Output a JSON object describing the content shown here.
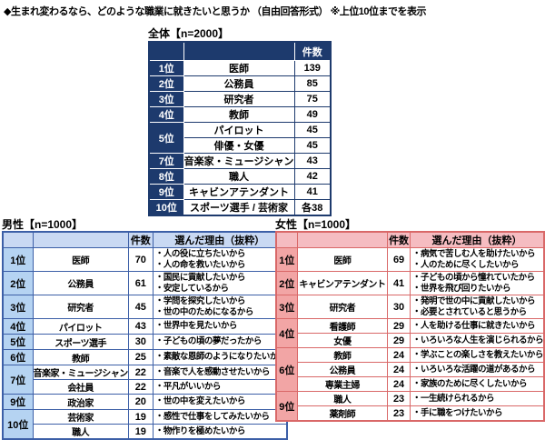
{
  "title": "◆生まれ変わるなら、どのような職業に就きたいと思うか （自由回答形式） ※上位10位までを表示",
  "colors": {
    "navy": "#1d3a6d",
    "male_border": "#3c5fa7",
    "male_header_bg": "#c9d9f3",
    "male_rank_bg": "#b5d3f2",
    "female_border": "#d96868",
    "female_header_bg": "#f5bcc1",
    "female_rank_bg": "#f2a5a5"
  },
  "chart_data": [
    {
      "type": "table",
      "label": "全体【n=2000】",
      "columns": {
        "count": "件数"
      },
      "rows": [
        {
          "rank": "1位",
          "rspan": 1,
          "job": "医師",
          "count": "139"
        },
        {
          "rank": "2位",
          "rspan": 1,
          "job": "公務員",
          "count": "85"
        },
        {
          "rank": "3位",
          "rspan": 1,
          "job": "研究者",
          "count": "75"
        },
        {
          "rank": "4位",
          "rspan": 1,
          "job": "教師",
          "count": "49"
        },
        {
          "rank": "5位",
          "rspan": 2,
          "job": "パイロット",
          "count": "45"
        },
        {
          "rank": null,
          "job": "俳優・女優",
          "count": "45"
        },
        {
          "rank": "7位",
          "rspan": 1,
          "job": "音楽家・ミュージシャン",
          "count": "43"
        },
        {
          "rank": "8位",
          "rspan": 1,
          "job": "職人",
          "count": "42"
        },
        {
          "rank": "9位",
          "rspan": 1,
          "job": "キャビンアテンダント",
          "count": "41"
        },
        {
          "rank": "10位",
          "rspan": 1,
          "job": "スポーツ選手 / 芸術家",
          "count": "各38"
        }
      ]
    },
    {
      "type": "table",
      "label": "男性【n=1000】",
      "columns": {
        "count": "件数",
        "reason": "選んだ理由（抜粋）"
      },
      "rows": [
        {
          "rank": "1位",
          "rspan": 1,
          "tall": true,
          "job": "医師",
          "count": "70",
          "reason": [
            "・人の役に立ちたいから",
            "・人の命を救いたいから"
          ]
        },
        {
          "rank": "2位",
          "rspan": 1,
          "tall": true,
          "job": "公務員",
          "count": "61",
          "reason": [
            "・国民に貢献したいから",
            "・安定しているから"
          ]
        },
        {
          "rank": "3位",
          "rspan": 1,
          "tall": true,
          "job": "研究者",
          "count": "45",
          "reason": [
            "・学問を探究したいから",
            "・世の中のためになるから"
          ]
        },
        {
          "rank": "4位",
          "rspan": 1,
          "job": "パイロット",
          "count": "43",
          "reason": [
            "・世界中を見たいから"
          ]
        },
        {
          "rank": "5位",
          "rspan": 1,
          "job": "スポーツ選手",
          "count": "30",
          "reason": [
            "・子どもの頃の夢だったから"
          ]
        },
        {
          "rank": "6位",
          "rspan": 1,
          "job": "教師",
          "count": "25",
          "reason": [
            "・素敵な恩師のようになりたいから"
          ]
        },
        {
          "rank": "7位",
          "rspan": 2,
          "job": "音楽家・ミュージシャン",
          "count": "22",
          "reason": [
            "・音楽で人を感動させたいから"
          ]
        },
        {
          "rank": null,
          "job": "会社員",
          "count": "22",
          "reason": [
            "・平凡がいいから"
          ]
        },
        {
          "rank": "9位",
          "rspan": 1,
          "job": "政治家",
          "count": "20",
          "reason": [
            "・世の中を変えたいから"
          ]
        },
        {
          "rank": "10位",
          "rspan": 2,
          "job": "芸術家",
          "count": "19",
          "reason": [
            "・感性で仕事をしてみたいから"
          ]
        },
        {
          "rank": null,
          "job": "職人",
          "count": "19",
          "reason": [
            "・物作りを極めたいから"
          ]
        }
      ]
    },
    {
      "type": "table",
      "label": "女性【n=1000】",
      "columns": {
        "count": "件数",
        "reason": "選んだ理由（抜粋）"
      },
      "rows": [
        {
          "rank": "1位",
          "rspan": 1,
          "tall": true,
          "job": "医師",
          "count": "69",
          "reason": [
            "・病気で苦しむ人を助けたいから",
            "・人のために尽くしたいから"
          ]
        },
        {
          "rank": "2位",
          "rspan": 1,
          "tall": true,
          "job": "キャビンアテンダント",
          "count": "41",
          "reason": [
            "・子どもの頃から憧れていたから",
            "・世界を飛び回りたいから"
          ]
        },
        {
          "rank": "3位",
          "rspan": 1,
          "tall": true,
          "job": "研究者",
          "count": "30",
          "reason": [
            "・発明で世の中に貢献したいから",
            "・必要とされていると思うから"
          ]
        },
        {
          "rank": "4位",
          "rspan": 2,
          "job": "看護師",
          "count": "29",
          "reason": [
            "・人を助ける仕事に就きたいから"
          ]
        },
        {
          "rank": null,
          "job": "女優",
          "count": "29",
          "reason": [
            "・いろいろな人生を演じられるから"
          ]
        },
        {
          "rank": "6位",
          "rspan": 3,
          "job": "教師",
          "count": "24",
          "reason": [
            "・学ぶことの楽しさを教えたいから"
          ]
        },
        {
          "rank": null,
          "job": "公務員",
          "count": "24",
          "reason": [
            "・いろいろな活躍の道があるから"
          ]
        },
        {
          "rank": null,
          "job": "専業主婦",
          "count": "24",
          "reason": [
            "・家族のために尽くしたいから"
          ]
        },
        {
          "rank": "9位",
          "rspan": 2,
          "job": "職人",
          "count": "23",
          "reason": [
            "・一生続けられるから"
          ]
        },
        {
          "rank": null,
          "job": "薬剤師",
          "count": "23",
          "reason": [
            "・手に職をつけたいから"
          ]
        }
      ]
    }
  ]
}
